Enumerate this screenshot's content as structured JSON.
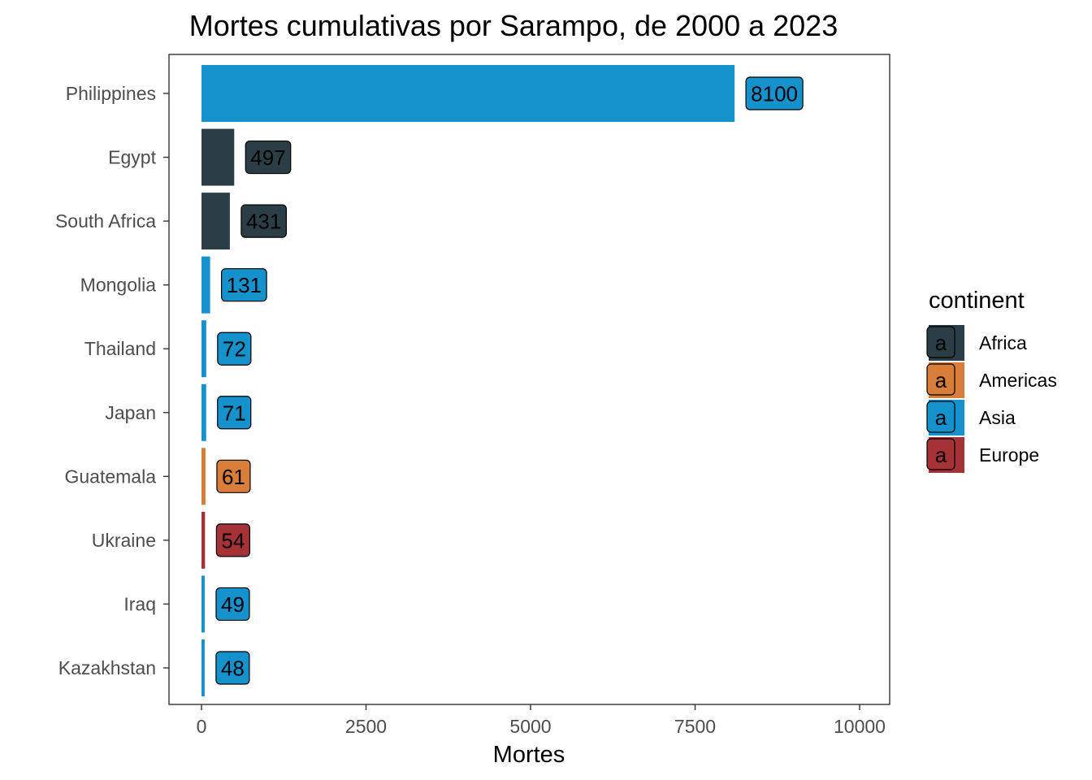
{
  "chart_data": {
    "type": "bar",
    "orientation": "horizontal",
    "title": "Mortes cumulativas por Sarampo, de 2000 a 2023",
    "xlabel": "Mortes",
    "ylabel": "",
    "xlim": [
      0,
      10000
    ],
    "x_ticks": [
      0,
      2500,
      5000,
      7500,
      10000
    ],
    "x_tick_labels": [
      "0",
      "2500",
      "5000",
      "7500",
      "10000"
    ],
    "grid": false,
    "categories": [
      "Philippines",
      "Egypt",
      "South Africa",
      "Mongolia",
      "Thailand",
      "Japan",
      "Guatemala",
      "Ukraine",
      "Iraq",
      "Kazakhstan"
    ],
    "values": [
      8100,
      497,
      431,
      131,
      72,
      71,
      61,
      54,
      49,
      48
    ],
    "value_labels": [
      "8100",
      "497",
      "431",
      "131",
      "72",
      "71",
      "61",
      "54",
      "49",
      "48"
    ],
    "groups": [
      "Asia",
      "Africa",
      "Africa",
      "Asia",
      "Asia",
      "Asia",
      "Americas",
      "Europe",
      "Asia",
      "Asia"
    ],
    "legend": {
      "title": "continent",
      "placement": "right",
      "key_glyph": "a",
      "entries": [
        {
          "name": "Africa",
          "color": "#2c3e45"
        },
        {
          "name": "Americas",
          "color": "#d97d3a"
        },
        {
          "name": "Asia",
          "color": "#1591cc"
        },
        {
          "name": "Europe",
          "color": "#a53237"
        }
      ]
    }
  }
}
